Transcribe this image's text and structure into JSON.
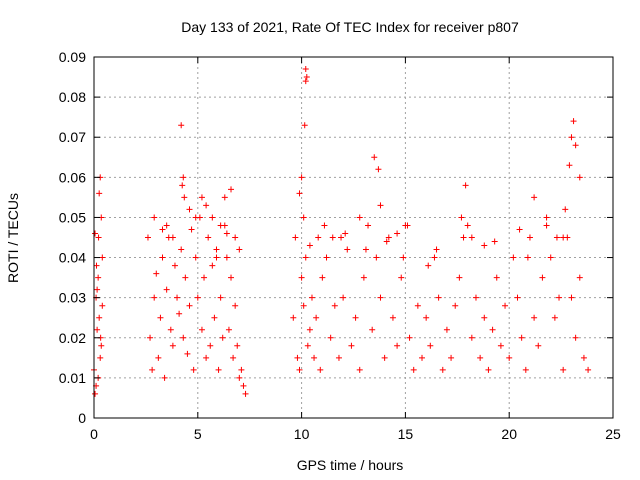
{
  "chart_data": {
    "type": "scatter",
    "title": "Day 133 of 2021, Rate Of TEC Index for receiver p807",
    "xlabel": "GPS time / hours",
    "ylabel": "ROTI / TECUs",
    "xlim": [
      0,
      25
    ],
    "ylim": [
      0,
      0.09
    ],
    "xticks": [
      0,
      5,
      10,
      15,
      20,
      25
    ],
    "yticks": [
      0,
      0.01,
      0.02,
      0.03,
      0.04,
      0.05,
      0.06,
      0.07,
      0.08,
      0.09
    ],
    "xtick_labels": [
      "0",
      "5",
      "10",
      "15",
      "20",
      "25"
    ],
    "ytick_labels": [
      "0",
      "0.01",
      "0.02",
      "0.03",
      "0.04",
      "0.05",
      "0.06",
      "0.07",
      "0.08",
      "0.09"
    ],
    "grid": true,
    "marker": "+",
    "color": "#ff0000",
    "series": [
      {
        "x": [
          0.0,
          0.05,
          0.1,
          0.15,
          0.2,
          0.25,
          0.3,
          0.35,
          0.4,
          0.3,
          0.2,
          0.1,
          0.25,
          0.35,
          0.15,
          0.4,
          0.05,
          0.22,
          0.32,
          0.12,
          2.6,
          2.7,
          2.8,
          2.9,
          3.0,
          3.1,
          3.2,
          3.3,
          3.4,
          3.5,
          3.6,
          3.7,
          3.8,
          3.9,
          4.0,
          4.1,
          4.2,
          4.3,
          4.4,
          4.5,
          4.6,
          4.7,
          4.8,
          4.9,
          5.0,
          5.1,
          5.2,
          5.3,
          5.4,
          5.5,
          5.6,
          5.7,
          5.8,
          5.9,
          6.0,
          6.1,
          6.2,
          6.3,
          6.4,
          6.5,
          6.6,
          6.7,
          6.8,
          6.9,
          7.0,
          7.1,
          7.2,
          7.3,
          4.2,
          4.3,
          4.25,
          4.35,
          3.5,
          3.8,
          4.6,
          5.2,
          5.4,
          5.7,
          6.1,
          6.4,
          6.6,
          6.8,
          7.0,
          3.3,
          2.9,
          5.9,
          6.3,
          4.9,
          9.6,
          9.7,
          9.8,
          9.9,
          10.0,
          10.1,
          10.2,
          10.3,
          10.4,
          10.5,
          10.6,
          10.7,
          10.8,
          10.9,
          11.0,
          11.2,
          11.4,
          11.6,
          11.8,
          12.0,
          12.2,
          12.4,
          12.6,
          12.8,
          13.0,
          13.2,
          13.4,
          13.6,
          13.8,
          14.0,
          14.2,
          14.4,
          14.6,
          14.8,
          15.0,
          15.2,
          15.4,
          15.6,
          15.8,
          16.0,
          16.2,
          16.4,
          16.6,
          16.8,
          17.0,
          17.2,
          17.4,
          17.6,
          17.8,
          18.0,
          18.2,
          18.4,
          18.6,
          18.8,
          19.0,
          19.2,
          19.4,
          19.6,
          19.8,
          20.0,
          20.2,
          20.4,
          20.6,
          20.8,
          21.0,
          21.2,
          21.4,
          21.6,
          21.8,
          22.0,
          22.2,
          22.4,
          22.6,
          22.8,
          23.0,
          23.2,
          23.4,
          23.6,
          23.8,
          10.2,
          10.2,
          10.25,
          10.15,
          10.0,
          9.9,
          10.1,
          11.1,
          11.5,
          12.1,
          12.8,
          13.5,
          13.7,
          13.8,
          14.1,
          14.6,
          15.1,
          16.5,
          17.7,
          17.9,
          18.2,
          18.8,
          20.5,
          21.2,
          21.8,
          22.3,
          22.6,
          22.9,
          23.0,
          23.1,
          23.2,
          22.7,
          23.4,
          10.4,
          11.9,
          13.1,
          14.9,
          16.1,
          19.3,
          20.9
        ],
        "y": [
          0.012,
          0.046,
          0.03,
          0.022,
          0.035,
          0.056,
          0.06,
          0.05,
          0.04,
          0.015,
          0.01,
          0.008,
          0.025,
          0.018,
          0.032,
          0.028,
          0.006,
          0.045,
          0.02,
          0.038,
          0.045,
          0.02,
          0.012,
          0.03,
          0.036,
          0.015,
          0.025,
          0.04,
          0.01,
          0.032,
          0.045,
          0.022,
          0.018,
          0.038,
          0.03,
          0.026,
          0.042,
          0.02,
          0.035,
          0.016,
          0.028,
          0.047,
          0.012,
          0.04,
          0.03,
          0.05,
          0.022,
          0.035,
          0.015,
          0.045,
          0.018,
          0.038,
          0.025,
          0.042,
          0.012,
          0.03,
          0.02,
          0.048,
          0.04,
          0.022,
          0.035,
          0.015,
          0.028,
          0.018,
          0.01,
          0.012,
          0.008,
          0.006,
          0.073,
          0.06,
          0.058,
          0.055,
          0.048,
          0.045,
          0.052,
          0.055,
          0.053,
          0.05,
          0.048,
          0.046,
          0.057,
          0.045,
          0.042,
          0.047,
          0.05,
          0.04,
          0.055,
          0.05,
          0.025,
          0.045,
          0.015,
          0.012,
          0.035,
          0.028,
          0.04,
          0.018,
          0.022,
          0.03,
          0.015,
          0.025,
          0.045,
          0.012,
          0.035,
          0.04,
          0.02,
          0.028,
          0.015,
          0.03,
          0.042,
          0.018,
          0.025,
          0.012,
          0.035,
          0.048,
          0.022,
          0.04,
          0.03,
          0.015,
          0.045,
          0.025,
          0.018,
          0.035,
          0.048,
          0.02,
          0.012,
          0.028,
          0.015,
          0.025,
          0.018,
          0.04,
          0.03,
          0.012,
          0.022,
          0.015,
          0.028,
          0.035,
          0.045,
          0.048,
          0.02,
          0.03,
          0.015,
          0.025,
          0.012,
          0.022,
          0.035,
          0.018,
          0.028,
          0.015,
          0.04,
          0.03,
          0.02,
          0.012,
          0.045,
          0.025,
          0.018,
          0.035,
          0.048,
          0.04,
          0.025,
          0.03,
          0.012,
          0.045,
          0.03,
          0.02,
          0.035,
          0.015,
          0.012,
          0.087,
          0.084,
          0.085,
          0.073,
          0.06,
          0.056,
          0.05,
          0.048,
          0.045,
          0.046,
          0.05,
          0.065,
          0.062,
          0.053,
          0.044,
          0.046,
          0.048,
          0.042,
          0.05,
          0.058,
          0.045,
          0.043,
          0.047,
          0.055,
          0.05,
          0.045,
          0.045,
          0.063,
          0.07,
          0.074,
          0.068,
          0.052,
          0.06,
          0.043,
          0.045,
          0.042,
          0.04,
          0.038,
          0.044,
          0.04
        ]
      }
    ]
  }
}
